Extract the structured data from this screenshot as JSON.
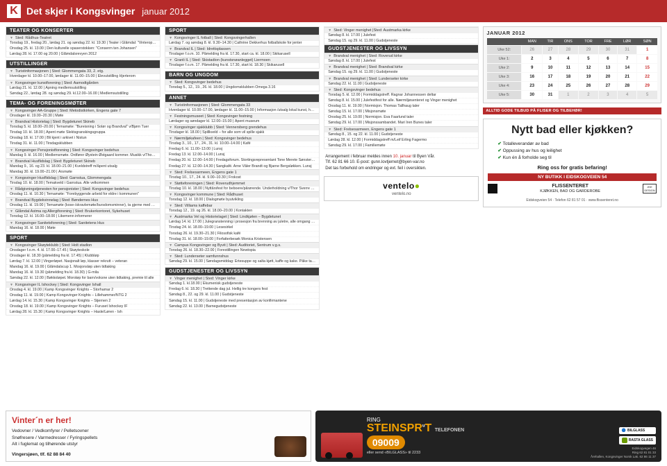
{
  "header": {
    "badge": "K",
    "title": "Det skjer i Kongsvinger",
    "month": "januar 2012"
  },
  "col1": [
    {
      "type": "sec",
      "t": "TEATER OG KONSERTER"
    },
    {
      "type": "venue",
      "t": "Sted: Rådhus-Teatret"
    },
    {
      "type": "line",
      "t": "Torsdag 19., fredag 20., lørdag 21. og søndag 22. kl. 19.30 | Teater i Glåmdal: \"Vinteropplaq\" av Levi Henriksen"
    },
    {
      "type": "line",
      "t": "Onsdag 25. kl. 13.00 | Den kulturelle spaserstokken: \"Conserrn ten Johansen\""
    },
    {
      "type": "line",
      "t": "Lørdag 28. kl. 17.00 og 20.00 | Glåmdalsrevyen 2012"
    },
    {
      "type": "sec",
      "t": "UTSTILLINGER"
    },
    {
      "type": "venue",
      "t": "Turistinformasjonen | Sted: Glommengata 33, 2. etg."
    },
    {
      "type": "line",
      "t": "Hverdager kl. 10.00–17.00, lørdager kl. 11.00–15.00 | Elevutstilling Hjerterom"
    },
    {
      "type": "venue",
      "t": "Kongsvinger kunstforening | Sted: Aamodtgården"
    },
    {
      "type": "line",
      "t": "Lørdag 21. kl. 12.00 | Åpning medlemsutstilling"
    },
    {
      "type": "line",
      "t": "Søndag 22., lørdag 28. og søndag 29. kl.12.00–16.00 | Medlemsutstilling"
    },
    {
      "type": "sec",
      "t": "TEMA- OG FORENINGSMØTER"
    },
    {
      "type": "venue",
      "t": "Kongsvinger AA-Gruppe | Sted: Metodistkirken, Engens gate 7"
    },
    {
      "type": "line",
      "t": "Onsdager kl. 19.00–20.30 | Møte"
    },
    {
      "type": "venue",
      "t": "Brandval Historielag | Sted: Bygdetunet Skineb"
    },
    {
      "type": "line",
      "t": "Torsdag 5. kl. 18.00–20.00 | Temamøte: \"Bureisning i Solør og Brandval\" v/Bjørn Tuer"
    },
    {
      "type": "line",
      "t": "Tirsdag 10. kl. 18.00 | Åpent møte Slektsgranskingsgruppa"
    },
    {
      "type": "line",
      "t": "Onsdag 18. kl. 17.00 | Bli kjent i arkivet i Nistun"
    },
    {
      "type": "line",
      "t": "Tirsdag 31. kl. 11.00 | Tirsdagsklubben"
    },
    {
      "type": "venue",
      "t": "Kongsvinger Pensjonistforening | Sted: Kongsvinger bedehus"
    },
    {
      "type": "line",
      "t": "Mandag 9. kl. 16.00 | Medlemsmøte. Ordfører Øystein Østgaard kommer. Musikk v/Thor Sverre Rundgren"
    },
    {
      "type": "venue",
      "t": "Brandval Husflidslag | Sted: Bygdetunet Skineb"
    },
    {
      "type": "line",
      "t": "Mandag 9., 16. og 23. kl. 18.00–21.00 | Kveldstreff m/åpent utsalg"
    },
    {
      "type": "line",
      "t": "Mandag 30. kl. 19.00–21.00 | Årsmøte"
    },
    {
      "type": "venue",
      "t": "Kongsvinger Husflidslag | Sted: Garnstua, Glommengata"
    },
    {
      "type": "line",
      "t": "Tirsdag 10. kl. 18.00 | Temakveld i Garnstua. Alle velkommen"
    },
    {
      "type": "venue",
      "t": "Rådgivningstjenesten for pensjonister | Sted: Kongsvinger bedehus"
    },
    {
      "type": "line",
      "t": "Onsdag 11. kl. 10.30 | Temamøte: \"Forebyggende arbeid for eldre i kommunen\""
    },
    {
      "type": "venue",
      "t": "Brandval Bygdekvinnelag | Sted: Bøndernes Hus"
    },
    {
      "type": "line",
      "t": "Onsdag 11. kl. 19.00 | Temamøte (kose-/skravlemøte/bursdomsminner), ta gjerne med håndarbeid"
    },
    {
      "type": "venue",
      "t": "Glåmdal Astma og Allergiforening | Sted: Brukerkontoret, Sykehuset"
    },
    {
      "type": "line",
      "t": "Torsdag 12. kl. 16.00–18.00 | Likemenn informerer"
    },
    {
      "type": "venue",
      "t": "Kongsvinger Sanitetsforening | Sted: Sanitetens Hus"
    },
    {
      "type": "line",
      "t": "Mandag 16. kl. 18.00 | Møte"
    },
    {
      "type": "sec",
      "t": "SPORT"
    },
    {
      "type": "venue",
      "t": "Kongsvinger Skøyteklubb | Sted: Holt stadion"
    },
    {
      "type": "line",
      "t": "Onsdager f.o.m. 4. kl. 17.00–17.45 | Skøyteskole"
    },
    {
      "type": "line",
      "t": "Onsdager kl. 18.30 (påmelding fra kl. 17.45) | Klubbløp"
    },
    {
      "type": "line",
      "t": "Lørdag 7. kl. 12.00 | Vingerløpet. Nasjonalt løp, klasser rekrutt – veteran"
    },
    {
      "type": "line",
      "t": "Mandag 16. kl. 19.00 | Glåmdalscup 1. Mosjonsløp uten tidtaking"
    },
    {
      "type": "line",
      "t": "Mandag 16. kl. 19.30 (påmelding fra kl. 18.30) | G-mila"
    },
    {
      "type": "line",
      "t": "Søndag 22. kl. 12.00 | Bøkkoløpet. Moroløp for barn/voksne uten tidtaking, premie til alle"
    },
    {
      "type": "venue",
      "t": "Kongsvinger IL Ishockey | Sted: Kongsvinger Ishall"
    },
    {
      "type": "line",
      "t": "Onsdag 4. kl. 19.00 | Kamp Kongsvinger Knights – Storhamar 2"
    },
    {
      "type": "line",
      "t": "Onsdag 11. kl. 19.00 | Kamp Kongsvinger Knights – Lillehammer/NTG 2"
    },
    {
      "type": "line",
      "t": "Lørdag 14. kl. 15.30 | Kamp Kongsvinger Knights – Stjernen 2"
    },
    {
      "type": "line",
      "t": "Onsdag 18. kl. 19.00 | Kamp Kongsvinger Knights – Furuset Ishockey IF"
    },
    {
      "type": "line",
      "t": "Lørdag 28. kl. 15.30 | Kamp Kongsvinger Knights – Hasle/Løren - Ish"
    }
  ],
  "col2": [
    {
      "type": "sec",
      "t": "SPORT"
    },
    {
      "type": "venue",
      "t": "Kongsvinger IL fotball | Sted: Kongsvingerhallen"
    },
    {
      "type": "line",
      "t": "Lørdag 7. og søndag 8. kl. 9.30–14.30 | Cathrine Dekkerhus fotballskole for jenter"
    },
    {
      "type": "venue",
      "t": "Brandval IL | Sted: Idrettsplassen"
    },
    {
      "type": "line",
      "t": "Tirsdager f.o.m. 10. Påmelding fra kl. 17.30, start ca. kl. 18.00 | Skikarusell"
    },
    {
      "type": "venue",
      "t": "Granli IL | Sted: Skistadion (kunstsnøanlegget) Liermoen"
    },
    {
      "type": "line",
      "t": "Tirsdager f.o.m. 17. Påmelding fra kl. 17.30, start kl. 18.30 | Skikarusell"
    },
    {
      "type": "sec",
      "t": "BARN OG UNGDOM"
    },
    {
      "type": "venue",
      "t": "Sted: Kongsvinger bedehus"
    },
    {
      "type": "line",
      "t": "Torsdag 5., 12., 19., 26. kl. 18.00 | Ungdomsklubben Omega 3.16"
    },
    {
      "type": "sec",
      "t": "ANNET"
    },
    {
      "type": "venue",
      "t": "Turistinformasjonen | Sted: Glommengata 33"
    },
    {
      "type": "line",
      "t": "Hverdager kl. 10.00–17.00, lørdager kl. 11.00–15.00 | Informasjon /utsalg lokal kunst, håndverk, husflid, litteratur"
    },
    {
      "type": "venue",
      "t": "Festningsmuseet | Sted: Kongsvinger festning"
    },
    {
      "type": "line",
      "t": "Lørdager og søndager kl. 12.00–15.00 | Åpent museum"
    },
    {
      "type": "venue",
      "t": "Kongsvinger sjakklubb | Sted: Vennersberg grendehus"
    },
    {
      "type": "line",
      "t": "Tirsdager kl. 18.00 | Spillkveld – for alle som vil spille sjakk"
    },
    {
      "type": "venue",
      "t": "Nærmiljøkafeen | Sted: Kongsvinger bedehus"
    },
    {
      "type": "line",
      "t": "Tirsdag 3., 10., 17., 24., 31. kl. 10.00–14.00 | Kafé"
    },
    {
      "type": "line",
      "t": "Fredag 6. kl. 11.00–13.00 | Lunsj"
    },
    {
      "type": "line",
      "t": "Fredag 13. kl. 12.00–14.00 | Lunsj"
    },
    {
      "type": "line",
      "t": "Fredag 20. kl. 12.00–14.00 | Fredagsforum. Stortingsrepresentant Tone Merete Sønsterud. Samferdselsutfordringer i regionen. Lunsj"
    },
    {
      "type": "line",
      "t": "Fredag 27. kl. 12.00–14.30 | Sangkafé. Arne Våler Brandt og Bjarne Bergsløkken. Lunsj"
    },
    {
      "type": "venue",
      "t": "Sted: Frelsesarmeen, Engens gate 1"
    },
    {
      "type": "line",
      "t": "Tirsdag 10., 17., 24. kl. 9.00–10.30 | Frokost"
    },
    {
      "type": "venue",
      "t": "Støtteforeningen | Sted: Roverudhjemmet"
    },
    {
      "type": "line",
      "t": "Tirsdag 10. kl. 18.00 | Nyttårsfest for beboere/pårørende. Underholdning v/Thor Sverre Rundgren. Servering/utlodning"
    },
    {
      "type": "venue",
      "t": "Kongsvinger kommune | Sted: Rådhuset"
    },
    {
      "type": "line",
      "t": "Torsdag 12. kl. 18.00 | Dialogmøte byutvikling"
    },
    {
      "type": "venue",
      "t": "Sted: Villiams kaffebar"
    },
    {
      "type": "line",
      "t": "Torsdag 12., 19. og 26. kl. 18.00–20.00 | Kontakten"
    },
    {
      "type": "venue",
      "t": "Austmarka Vel og Historielaget | Sted: Lindkjølen – Bygdetunet"
    },
    {
      "type": "line",
      "t": "Lørdag 14. kl. 17.00 | Julegranstenning i prosesjon fra brenning av juletre, alle omgang i midten etterpå, kakespising på bygdetunet, kaffe og kake selges"
    },
    {
      "type": "line",
      "t": "Tirsdag 24. kl. 18.00–19.00 | Lesesirkel"
    },
    {
      "type": "line",
      "t": "Torsdag 26. kl. 19.30–21.30 | Filosofisk kafé"
    },
    {
      "type": "line",
      "t": "Tirsdag 31. kl. 18.00–19.00 | Forfatterbesøk Monica Kristensen"
    },
    {
      "type": "venue",
      "t": "Campus Kongsvinger og Byvit | Sted: Auditoriet, Sentrum v.g.s."
    },
    {
      "type": "line",
      "t": "Torsdag 26. kl. 18.30–22.00 | Forestillingen Newtopia"
    },
    {
      "type": "venue",
      "t": "Sted: Lunderseter samfunnshus"
    },
    {
      "type": "line",
      "t": "Søndag 29. kl. 15.00 | Søndagsmiddag: Ertesuppe og salta kjøtt, kaffe og kake. Påke ta meis til barna"
    },
    {
      "type": "sec",
      "t": "GUDSTJENESTER OG LIVSSYN"
    },
    {
      "type": "venue",
      "t": "Vinger menighet | Sted: Vinger kirke"
    },
    {
      "type": "line",
      "t": "Søndag 1. kl.18.00 | Ekumenisk gudstjeneste"
    },
    {
      "type": "line",
      "t": "Fredag 6. kl. 18.30 | Trettende dag jul. Hellig tre kongers fest"
    },
    {
      "type": "line",
      "t": "Søndag 8., 22. og 29. kl. 11.00 | Gudstjeneste"
    },
    {
      "type": "line",
      "t": "Søndag 15. kl. 11.00 | Gudstjeneste med presentasjon av konfirmantene"
    },
    {
      "type": "line",
      "t": "Søndag 22. kl. 13.00 | Barnegudstjeneste"
    }
  ],
  "col3": [
    {
      "type": "venue",
      "t": "Sted: Vinger menighet |Sted: Austmarka kirke"
    },
    {
      "type": "line",
      "t": "Søndag 8. kl. 17.00 | Julefest"
    },
    {
      "type": "line",
      "t": "Søndag 15. og 29. kl. 11.00 | Gudstjeneste"
    },
    {
      "type": "sec",
      "t": "GUDSTJENESTER OG LIVSSYN"
    },
    {
      "type": "venue",
      "t": "Brandval menighet | Sted: Roverud kirke"
    },
    {
      "type": "line",
      "t": "Søndag 8. kl. 17.00 | Julefest"
    },
    {
      "type": "venue",
      "t": "Brandval menighet | Sted: Brandval kirke"
    },
    {
      "type": "line",
      "t": "Søndag 15. og 29. kl. 11.00 | Gudstjeneste"
    },
    {
      "type": "venue",
      "t": "Brandval menighet | Sted: Lunderseter kirke"
    },
    {
      "type": "line",
      "t": "Søndag 22. kl. 11.00 | Gudstjeneste"
    },
    {
      "type": "venue",
      "t": "Sted: Kongsvinger bedehus"
    },
    {
      "type": "line",
      "t": "Torsdag 5. kl. 12.00 | Formiddagstreff. Ragnar Johannessen deltar"
    },
    {
      "type": "line",
      "t": "Søndag 8. kl. 15.00 | Julefestfest for alle. Nærmiljøsenteret og Vinger menighet"
    },
    {
      "type": "line",
      "t": "Onsdag 11. kl. 19.00 | Normisjon. Thomas Tallhaug taler"
    },
    {
      "type": "line",
      "t": "Søndag 15. kl. 17.00 | Misjonsmøte"
    },
    {
      "type": "line",
      "t": "Onsdag 25. kl. 19.00 | Normisjon. Eva Faarlund taler"
    },
    {
      "type": "line",
      "t": "Søndag 29. kl. 17.00 | Misjonssambandet. Mari Iren Bunes taler"
    },
    {
      "type": "venue",
      "t": "Sted: Frelsesarmeen, Engens gate 1"
    },
    {
      "type": "line",
      "t": "Søndag 8., 15. og 22. kl. 11.00 | Gudstjeneste"
    },
    {
      "type": "line",
      "t": "Lørdag 28. kl. 12.00 | Formiddagstreff m/Leif Erling Fagermo"
    },
    {
      "type": "line",
      "t": "Søndag 29. kl. 17.00 | Familiemøte"
    }
  ],
  "arr_note": {
    "l1": "Arrangement i februar meldes innen ",
    "l1red": "10. januar",
    "l1b": " til Byen Vår.",
    "l2": "Tlf. 62 81 66 10. E-post: gunn.lovtjernet@byen-var.no",
    "l3": "Det tas forbehold om endringer og evt. feil i oversikten."
  },
  "ventelo": {
    "name": "ventelo",
    "url": "ventelo.no"
  },
  "calendar": {
    "title": "JANUAR 2012",
    "days": [
      "MAN",
      "TIR",
      "ONS",
      "TOR",
      "FRE",
      "LØR",
      "SØN"
    ],
    "weeks": [
      {
        "lbl": "Uke 52:",
        "d": [
          "26",
          "27",
          "28",
          "29",
          "30",
          "31",
          "1"
        ],
        "muted": [
          0,
          1,
          2,
          3,
          4,
          5
        ],
        "sun": 6
      },
      {
        "lbl": "Uke 1:",
        "d": [
          "2",
          "3",
          "4",
          "5",
          "6",
          "7",
          "8"
        ],
        "sun": 6
      },
      {
        "lbl": "Uke 2:",
        "d": [
          "9",
          "10",
          "11",
          "12",
          "13",
          "14",
          "15"
        ],
        "sun": 6
      },
      {
        "lbl": "Uke 3:",
        "d": [
          "16",
          "17",
          "18",
          "19",
          "20",
          "21",
          "22"
        ],
        "sun": 6
      },
      {
        "lbl": "Uke 4:",
        "d": [
          "23",
          "24",
          "25",
          "26",
          "27",
          "28",
          "29"
        ],
        "sun": 6
      },
      {
        "lbl": "Uke 5:",
        "d": [
          "30",
          "31",
          "1",
          "2",
          "3",
          "4",
          "5"
        ],
        "muted": [
          2,
          3,
          4,
          5,
          6
        ]
      }
    ]
  },
  "promo_strip": "ALLTID GODE TILBUD PÅ FLISER OG TILBEHØR!",
  "nytt": {
    "h": "Nytt bad eller kjøkken?",
    "bul": [
      "Totalleverandør av bad",
      "Oppussing av hus og leilighet",
      "Kun én å forholde seg til"
    ],
    "ring": "Ring oss for gratis befaring!",
    "redbar": "NY BUTIKK I EIDSKOGVEIEN 54",
    "flis_name": "FLISSENTERET",
    "flis_sub": "KJØKKEN, BAD OG GARDEROBE",
    "jke": "JKE DESIGN",
    "addr": "Eidskogveien 54 · Telefon 62 81 57 01 · www.flissenteret.no"
  },
  "vinter": {
    "h": "Vinter´n er her!",
    "p": "Vedovner / Vedkomfyrer / Pelletsovner\nSnøfresere / Varmedresser / Fyringspellets\nAlt i fuglemat og tilhørende utstyr",
    "contact": "Vingersjøen, tlf. 62 88 84 40"
  },
  "steins": {
    "ring": "RING",
    "brand": "STEINSPR",
    "brand2": "T",
    "tele": "TELEFONEN",
    "num": "09009",
    "sub": "eller send «BILGLASS» til 2233",
    "l1": "BILGLASS",
    "l2": "RASTA GLASS",
    "addr": "Eidskogvegen 46\nRing 62 81 01 33\nÅrehallen, Kongsvinger Norsk Lak. 62 86 11 37"
  }
}
